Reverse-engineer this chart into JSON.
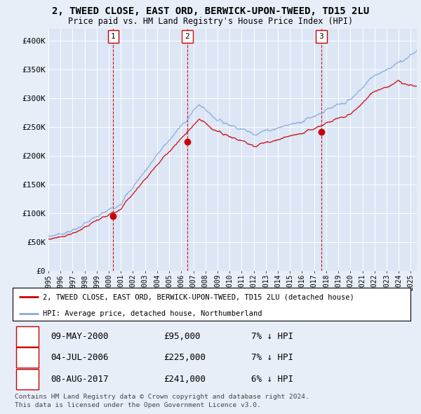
{
  "title1": "2, TWEED CLOSE, EAST ORD, BERWICK-UPON-TWEED, TD15 2LU",
  "title2": "Price paid vs. HM Land Registry's House Price Index (HPI)",
  "legend_line1": "2, TWEED CLOSE, EAST ORD, BERWICK-UPON-TWEED, TD15 2LU (detached house)",
  "legend_line2": "HPI: Average price, detached house, Northumberland",
  "footer1": "Contains HM Land Registry data © Crown copyright and database right 2024.",
  "footer2": "This data is licensed under the Open Government Licence v3.0.",
  "sale_color": "#cc0000",
  "hpi_color": "#88aadd",
  "background_color": "#e8eef8",
  "plot_bg_color": "#dce6f5",
  "ylim": [
    0,
    420000
  ],
  "yticks": [
    0,
    50000,
    100000,
    150000,
    200000,
    250000,
    300000,
    350000,
    400000
  ],
  "ytick_labels": [
    "£0",
    "£50K",
    "£100K",
    "£150K",
    "£200K",
    "£250K",
    "£300K",
    "£350K",
    "£400K"
  ],
  "sales": [
    {
      "num": 1,
      "date_num": 2000.36,
      "price": 95000,
      "date_str": "09-MAY-2000",
      "pct": "7%",
      "dir": "↓"
    },
    {
      "num": 2,
      "date_num": 2006.5,
      "price": 225000,
      "date_str": "04-JUL-2006",
      "pct": "7%",
      "dir": "↓"
    },
    {
      "num": 3,
      "date_num": 2017.6,
      "price": 241000,
      "date_str": "08-AUG-2017",
      "pct": "6%",
      "dir": "↓"
    }
  ],
  "xmin": 1995.0,
  "xmax": 2025.5,
  "xticks": [
    1995,
    1996,
    1997,
    1998,
    1999,
    2000,
    2001,
    2002,
    2003,
    2004,
    2005,
    2006,
    2007,
    2008,
    2009,
    2010,
    2011,
    2012,
    2013,
    2014,
    2015,
    2016,
    2017,
    2018,
    2019,
    2020,
    2021,
    2022,
    2023,
    2024,
    2025
  ]
}
